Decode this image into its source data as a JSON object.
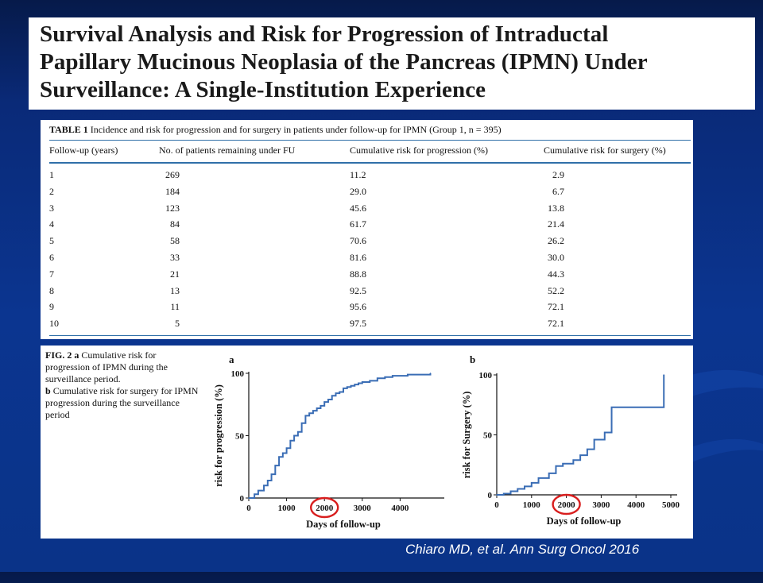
{
  "title": {
    "lines": [
      "Survival Analysis and Risk for Progression of Intraductal",
      "Papillary Mucinous Neoplasia of the Pancreas (IPMN) Under",
      "Surveillance: A Single-Institution Experience"
    ]
  },
  "table": {
    "caption_label": "TABLE 1",
    "caption_text": "Incidence and risk for progression and for surgery in patients under follow-up for IPMN (Group 1, n = 395)",
    "headers": [
      "Follow-up (years)",
      "No. of patients remaining under FU",
      "Cumulative risk for progression (%)",
      "Cumulative risk for surgery (%)"
    ],
    "rows": [
      [
        "1",
        "269",
        "11.2",
        "2.9"
      ],
      [
        "2",
        "184",
        "29.0",
        "6.7"
      ],
      [
        "3",
        "123",
        "45.6",
        "13.8"
      ],
      [
        "4",
        "84",
        "61.7",
        "21.4"
      ],
      [
        "5",
        "58",
        "70.6",
        "26.2"
      ],
      [
        "6",
        "33",
        "81.6",
        "30.0"
      ],
      [
        "7",
        "21",
        "88.8",
        "44.3"
      ],
      [
        "8",
        "13",
        "92.5",
        "52.2"
      ],
      [
        "9",
        "11",
        "95.6",
        "72.1"
      ],
      [
        "10",
        "5",
        "97.5",
        "72.1"
      ]
    ],
    "highlight_after_row": "5",
    "highlight_color": "#d81e1e"
  },
  "figure": {
    "caption_label": "FIG. 2",
    "caption_a_label": "a",
    "caption_a_text": "Cumulative risk for progression of IPMN during the surveillance period.",
    "caption_b_label": "b",
    "caption_b_text": "Cumulative risk for surgery for IPMN progression during the surveillance period"
  },
  "chart_data": [
    {
      "type": "line",
      "panel": "a",
      "xlabel": "Days of follow-up",
      "ylabel": "risk for progression (%)",
      "xlim": [
        0,
        5000
      ],
      "ylim": [
        0,
        100
      ],
      "xticks": [
        0,
        1000,
        2000,
        3000,
        4000
      ],
      "yticks": [
        0,
        50,
        100
      ],
      "highlight_tick": 2000,
      "series": [
        {
          "step": true,
          "color": "#3a6db5",
          "x": [
            0,
            150,
            250,
            400,
            500,
            600,
            700,
            800,
            900,
            1000,
            1100,
            1200,
            1300,
            1400,
            1500,
            1600,
            1700,
            1800,
            1900,
            2000,
            2100,
            2200,
            2300,
            2400,
            2500,
            2600,
            2700,
            2800,
            2900,
            3000,
            3200,
            3400,
            3600,
            3800,
            4200,
            4800
          ],
          "y": [
            0,
            3,
            6,
            10,
            14,
            19,
            26,
            33,
            36,
            40,
            46,
            50,
            53,
            60,
            66,
            68,
            70,
            72,
            74,
            77,
            79,
            82,
            84,
            85,
            88,
            89,
            90,
            91,
            92,
            93,
            94,
            96,
            97,
            98,
            99,
            100
          ]
        }
      ]
    },
    {
      "type": "line",
      "panel": "b",
      "xlabel": "Days of follow-up",
      "ylabel": "risk for Surgery (%)",
      "xlim": [
        0,
        5000
      ],
      "ylim": [
        0,
        100
      ],
      "xticks": [
        0,
        1000,
        2000,
        3000,
        4000,
        5000
      ],
      "yticks": [
        0,
        50,
        100
      ],
      "highlight_tick": 2000,
      "series": [
        {
          "step": true,
          "color": "#3a6db5",
          "x": [
            0,
            200,
            400,
            600,
            800,
            1000,
            1200,
            1500,
            1700,
            1900,
            2200,
            2400,
            2600,
            2800,
            3100,
            3300,
            4800
          ],
          "y": [
            0,
            1,
            3,
            5,
            7,
            10,
            14,
            18,
            24,
            26,
            29,
            33,
            38,
            46,
            52,
            73,
            100
          ]
        }
      ]
    }
  ],
  "citation": "Chiaro MD, et al. Ann Surg Oncol 2016"
}
